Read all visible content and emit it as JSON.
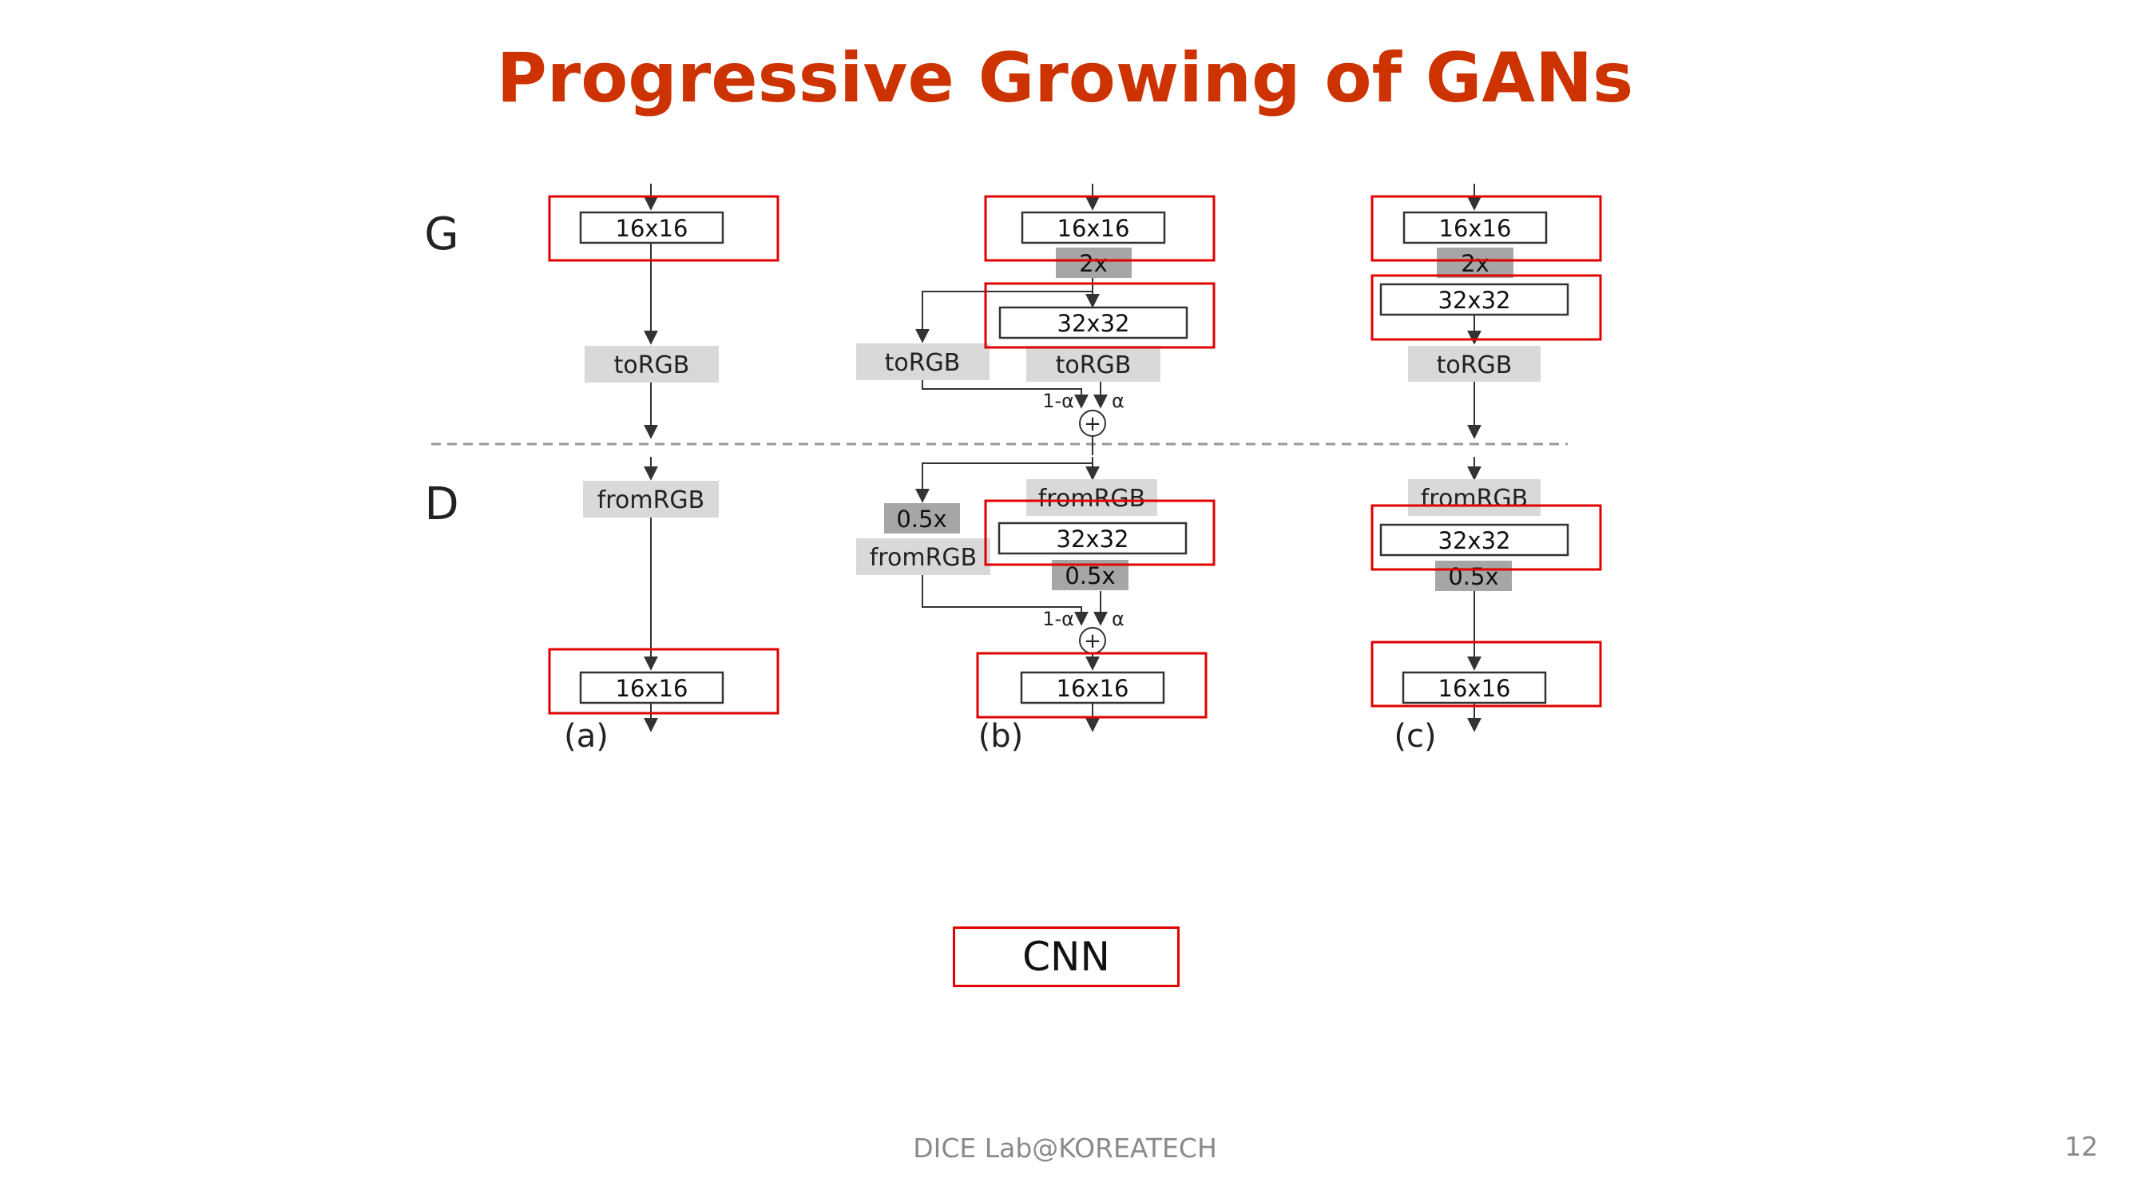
{
  "title": "Progressive Growing of GANs",
  "footer": "DICE Lab@KOREATECH",
  "page_number": "12",
  "cnn_label": "CNN",
  "colors": {
    "title": "#cc3300",
    "highlight": "#e00000",
    "light_block": "#d9d9d9",
    "dark_block": "#a6a6a6",
    "line": "#333333"
  },
  "diagram": {
    "generator_label": "G",
    "discriminator_label": "D",
    "panel_labels": [
      "(a)",
      "(b)",
      "(c)"
    ],
    "blocks": {
      "g16": "16x16",
      "g32": "32x32",
      "up": "2x",
      "to_rgb": "toRGB",
      "from_rgb": "fromRGB",
      "d32": "32x32",
      "down": "0.5x",
      "d16": "16x16"
    },
    "weights": {
      "one_minus_alpha": "1-α",
      "alpha": "α"
    },
    "sum": "+"
  }
}
